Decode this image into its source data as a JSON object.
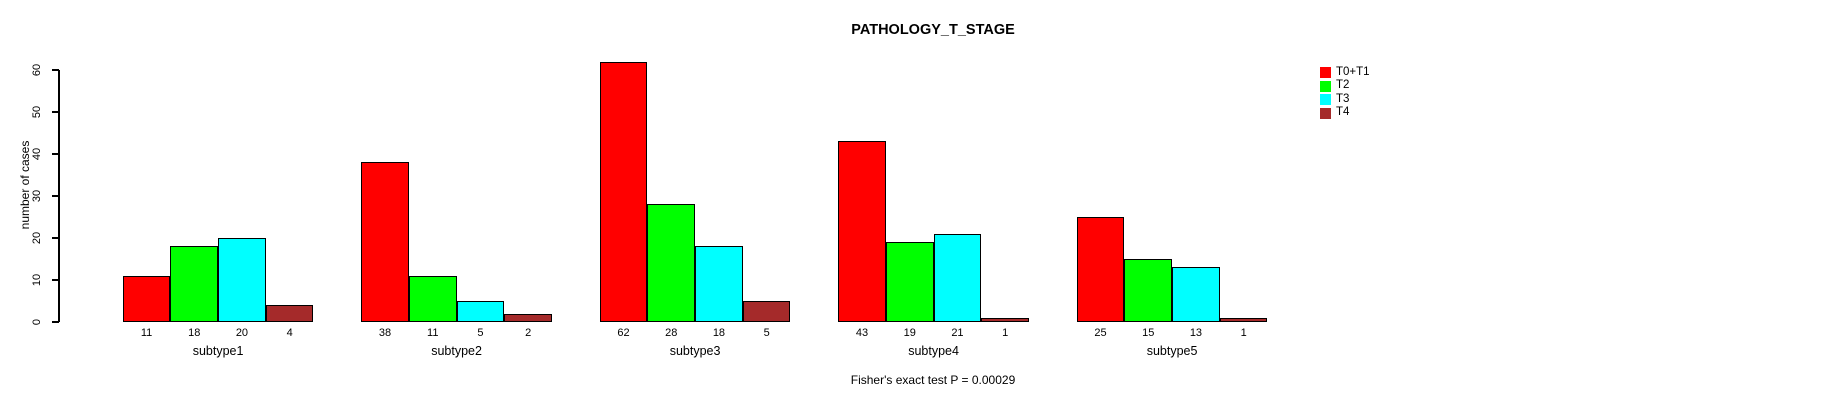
{
  "title": "PATHOLOGY_T_STAGE",
  "chart_data": {
    "type": "bar",
    "title": "PATHOLOGY_T_STAGE",
    "xlabel": "",
    "ylabel": "number of cases",
    "ylim": [
      0,
      60
    ],
    "yticks": [
      0,
      10,
      20,
      30,
      40,
      50,
      60
    ],
    "grid": false,
    "legend_position": "right",
    "categories": [
      "subtype1",
      "subtype2",
      "subtype3",
      "subtype4",
      "subtype5"
    ],
    "series": [
      {
        "name": "T0+T1",
        "color": "#ff0000",
        "values": [
          11,
          38,
          62,
          43,
          25
        ]
      },
      {
        "name": "T2",
        "color": "#00ff00",
        "values": [
          18,
          11,
          28,
          19,
          15
        ]
      },
      {
        "name": "T3",
        "color": "#00ffff",
        "values": [
          20,
          5,
          18,
          21,
          13
        ]
      },
      {
        "name": "T4",
        "color": "#a52a2a",
        "values": [
          4,
          2,
          5,
          1,
          1
        ]
      }
    ],
    "bar_value_labels_shown": true,
    "annotation": "Fisher's exact test P = 0.00029"
  },
  "colors": {
    "background": "#ffffff",
    "axis": "#000000",
    "bar_border": "#000000",
    "text": "#000000"
  }
}
